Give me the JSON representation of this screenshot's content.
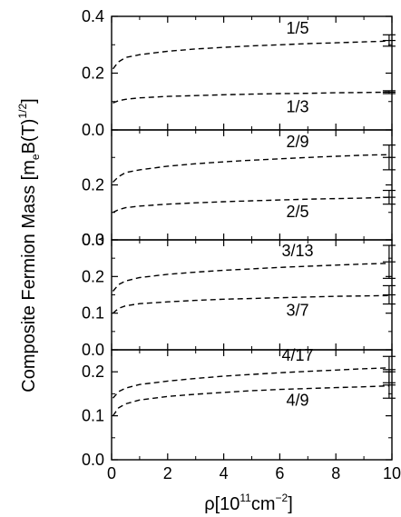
{
  "chart_data": {
    "type": "line",
    "ylabel_parts": [
      "Composite Fermion Mass [m",
      "e",
      "B(T)",
      "1/2",
      "]"
    ],
    "xlabel_parts": [
      "ρ[10",
      "11",
      "cm",
      "−2",
      "]"
    ],
    "xlim": [
      0,
      10
    ],
    "x_ticks": [
      "0",
      "2",
      "4",
      "6",
      "8",
      "10"
    ],
    "line_style": "dashed",
    "panels": [
      {
        "ylim": [
          0,
          0.4
        ],
        "y_ticks": [
          "0.0",
          "0.2",
          "0.4"
        ],
        "series": [
          {
            "name": "1/5",
            "x": [
              0.05,
              0.25,
              0.5,
              1,
              2,
              3,
              4,
              5,
              6,
              7,
              8,
              9,
              9.9
            ],
            "y": [
              0.215,
              0.24,
              0.255,
              0.265,
              0.277,
              0.285,
              0.291,
              0.296,
              0.3,
              0.304,
              0.307,
              0.31,
              0.313
            ]
          },
          {
            "name": "1/3",
            "x": [
              0.05,
              0.25,
              0.5,
              1,
              2,
              3,
              4,
              5,
              6,
              7,
              8,
              9,
              9.9
            ],
            "y": [
              0.095,
              0.103,
              0.108,
              0.113,
              0.118,
              0.121,
              0.124,
              0.126,
              0.128,
              0.129,
              0.131,
              0.132,
              0.133
            ]
          }
        ],
        "error_bars": [
          {
            "x": 9.9,
            "y": 0.315,
            "yerr": 0.02
          },
          {
            "x": 9.9,
            "y": 0.133,
            "yerr": 0.005
          }
        ]
      },
      {
        "ylim": [
          0,
          0.4
        ],
        "y_ticks": [
          "0.0",
          "0.2"
        ],
        "series": [
          {
            "name": "2/9",
            "x": [
              0.05,
              0.25,
              0.5,
              1,
              2,
              3,
              4,
              5,
              6,
              7,
              8,
              9,
              9.9
            ],
            "y": [
              0.21,
              0.23,
              0.245,
              0.255,
              0.268,
              0.277,
              0.284,
              0.29,
              0.295,
              0.3,
              0.304,
              0.308,
              0.31
            ]
          },
          {
            "name": "2/5",
            "x": [
              0.05,
              0.25,
              0.5,
              1,
              2,
              3,
              4,
              5,
              6,
              7,
              8,
              9,
              9.9
            ],
            "y": [
              0.1,
              0.11,
              0.117,
              0.123,
              0.13,
              0.135,
              0.139,
              0.142,
              0.145,
              0.148,
              0.15,
              0.152,
              0.155
            ]
          }
        ],
        "error_bars": [
          {
            "x": 9.9,
            "y": 0.3,
            "yerr": 0.045
          },
          {
            "x": 9.9,
            "y": 0.155,
            "yerr": 0.025
          }
        ]
      },
      {
        "ylim": [
          0,
          0.3
        ],
        "y_ticks": [
          "0.0",
          "0.1",
          "0.2",
          "0.3"
        ],
        "series": [
          {
            "name": "3/13",
            "x": [
              0.05,
              0.25,
              0.5,
              1,
              2,
              3,
              4,
              5,
              6,
              7,
              8,
              9,
              9.9
            ],
            "y": [
              0.16,
              0.178,
              0.188,
              0.197,
              0.206,
              0.212,
              0.217,
              0.221,
              0.225,
              0.228,
              0.231,
              0.234,
              0.236
            ]
          },
          {
            "name": "3/7",
            "x": [
              0.05,
              0.25,
              0.5,
              1,
              2,
              3,
              4,
              5,
              6,
              7,
              8,
              9,
              9.9
            ],
            "y": [
              0.1,
              0.113,
              0.12,
              0.126,
              0.131,
              0.135,
              0.138,
              0.14,
              0.142,
              0.144,
              0.146,
              0.147,
              0.148
            ]
          }
        ],
        "error_bars": [
          {
            "x": 9.9,
            "y": 0.24,
            "yerr": 0.045
          },
          {
            "x": 9.9,
            "y": 0.15,
            "yerr": 0.025
          }
        ]
      },
      {
        "ylim": [
          0,
          0.25
        ],
        "y_ticks": [
          "0.0",
          "0.1",
          "0.2"
        ],
        "series": [
          {
            "name": "4/17",
            "x": [
              0.05,
              0.25,
              0.5,
              1,
              2,
              3,
              4,
              5,
              6,
              7,
              8,
              9,
              9.9
            ],
            "y": [
              0.14,
              0.155,
              0.163,
              0.171,
              0.179,
              0.185,
              0.19,
              0.194,
              0.198,
              0.201,
              0.204,
              0.207,
              0.209
            ]
          },
          {
            "name": "4/9",
            "x": [
              0.05,
              0.25,
              0.5,
              1,
              2,
              3,
              4,
              5,
              6,
              7,
              8,
              9,
              9.9
            ],
            "y": [
              0.1,
              0.118,
              0.127,
              0.136,
              0.144,
              0.149,
              0.153,
              0.157,
              0.16,
              0.162,
              0.164,
              0.166,
              0.168
            ]
          }
        ],
        "error_bars": [
          {
            "x": 9.9,
            "y": 0.205,
            "yerr": 0.03
          },
          {
            "x": 9.9,
            "y": 0.17,
            "yerr": 0.03
          }
        ]
      }
    ]
  }
}
